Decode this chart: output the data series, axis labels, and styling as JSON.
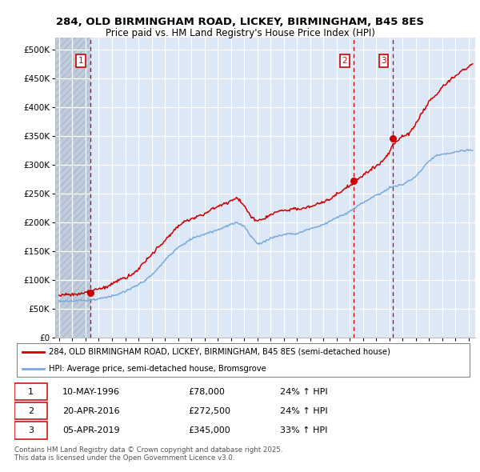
{
  "title1": "284, OLD BIRMINGHAM ROAD, LICKEY, BIRMINGHAM, B45 8ES",
  "title2": "Price paid vs. HM Land Registry's House Price Index (HPI)",
  "ylabel_values": [
    0,
    50000,
    100000,
    150000,
    200000,
    250000,
    300000,
    350000,
    400000,
    450000,
    500000
  ],
  "ylim": [
    0,
    520000
  ],
  "xlim_start": 1993.7,
  "xlim_end": 2025.5,
  "sale_dates": [
    1996.36,
    2016.31,
    2019.26
  ],
  "sale_prices": [
    78000,
    272500,
    345000
  ],
  "sale_labels": [
    "1",
    "2",
    "3"
  ],
  "legend_line1": "284, OLD BIRMINGHAM ROAD, LICKEY, BIRMINGHAM, B45 8ES (semi-detached house)",
  "legend_line2": "HPI: Average price, semi-detached house, Bromsgrove",
  "annotation1_date": "10-MAY-1996",
  "annotation1_price": "£78,000",
  "annotation1_hpi": "24% ↑ HPI",
  "annotation2_date": "20-APR-2016",
  "annotation2_price": "£272,500",
  "annotation2_hpi": "24% ↑ HPI",
  "annotation3_date": "05-APR-2019",
  "annotation3_price": "£345,000",
  "annotation3_hpi": "33% ↑ HPI",
  "footnote": "Contains HM Land Registry data © Crown copyright and database right 2025.\nThis data is licensed under the Open Government Licence v3.0.",
  "sale_color": "#cc0000",
  "hpi_color": "#7aaadd",
  "bg_chart": "#dce8f6",
  "grid_color": "#ffffff",
  "vline_color": "#cc0000",
  "hatch_color": "#c0ccdd"
}
